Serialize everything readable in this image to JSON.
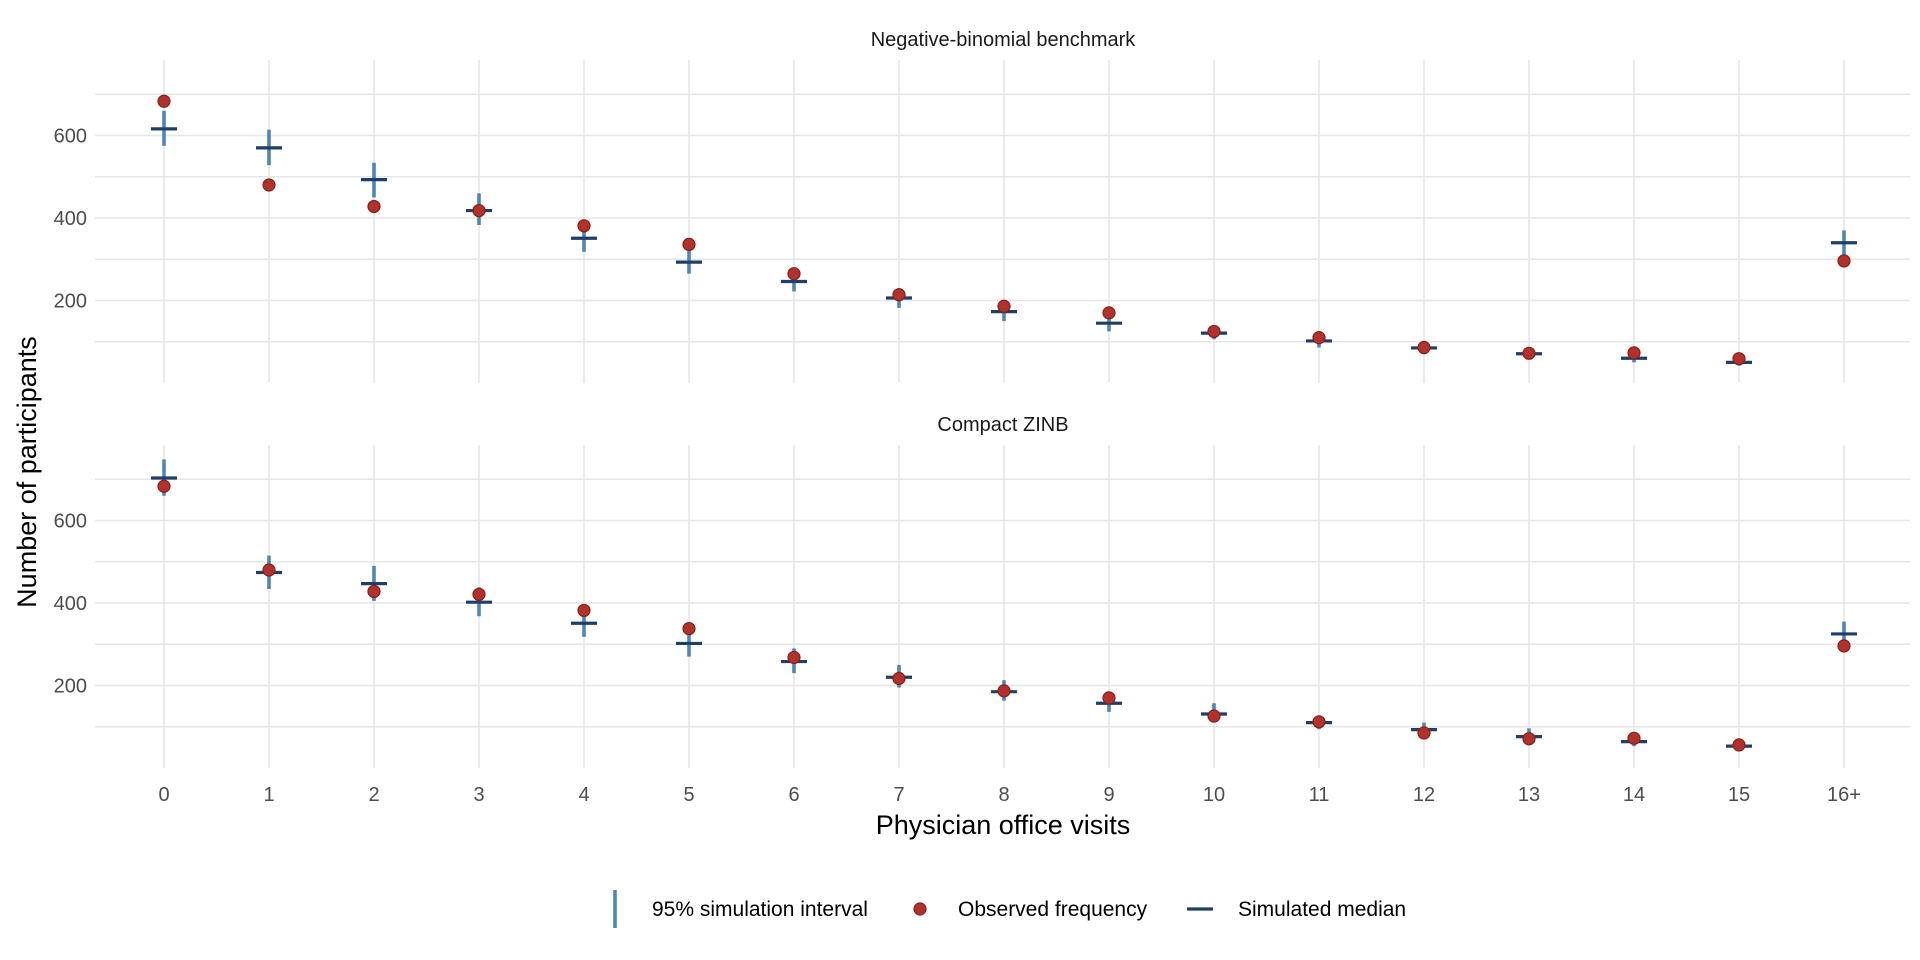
{
  "chart_data": {
    "type": "scatter",
    "x_categories": [
      "0",
      "1",
      "2",
      "3",
      "4",
      "5",
      "6",
      "7",
      "8",
      "9",
      "10",
      "11",
      "12",
      "13",
      "14",
      "15",
      "16+"
    ],
    "xlabel": "Physician office visits",
    "ylabel": "Number of participants",
    "y_ticks": [
      200,
      400,
      600
    ],
    "colors": {
      "interval": "#4f86b8",
      "median": "#1f3f6b",
      "observed": "#b2322b",
      "observed_outline": "#8a1f1a",
      "grid": "#e6e6e6"
    },
    "legend": {
      "position": "bottom",
      "items": [
        {
          "key": "interval",
          "label": "95% simulation interval"
        },
        {
          "key": "observed",
          "label": "Observed frequency"
        },
        {
          "key": "median",
          "label": "Simulated median"
        }
      ]
    },
    "panels": [
      {
        "title": "Negative-binomial benchmark",
        "ylim": [
          0,
          790
        ],
        "observed": [
          683,
          480,
          428,
          418,
          381,
          336,
          265,
          214,
          186,
          170,
          125,
          110,
          86,
          72,
          73,
          59,
          296
        ],
        "median": [
          616,
          570,
          493,
          418,
          351,
          293,
          246,
          206,
          173,
          145,
          121,
          102,
          85,
          71,
          60,
          50,
          340
        ],
        "lower": [
          575,
          528,
          450,
          383,
          318,
          265,
          222,
          182,
          150,
          125,
          106,
          86,
          70,
          60,
          50,
          42,
          310
        ],
        "upper": [
          660,
          614,
          534,
          460,
          385,
          320,
          268,
          230,
          190,
          165,
          138,
          118,
          98,
          84,
          71,
          62,
          370
        ]
      },
      {
        "title": "Compact ZINB",
        "ylim": [
          0,
          790
        ],
        "observed": [
          683,
          480,
          428,
          421,
          382,
          338,
          268,
          217,
          187,
          170,
          126,
          112,
          85,
          71,
          72,
          56,
          296
        ],
        "median": [
          703,
          474,
          447,
          402,
          351,
          302,
          258,
          220,
          185,
          157,
          131,
          110,
          93,
          76,
          64,
          53,
          325
        ],
        "lower": [
          660,
          434,
          405,
          368,
          318,
          270,
          230,
          195,
          163,
          136,
          113,
          94,
          78,
          63,
          53,
          44,
          295
        ],
        "upper": [
          748,
          515,
          490,
          438,
          382,
          335,
          290,
          250,
          213,
          180,
          157,
          126,
          110,
          96,
          80,
          68,
          355
        ]
      }
    ]
  }
}
